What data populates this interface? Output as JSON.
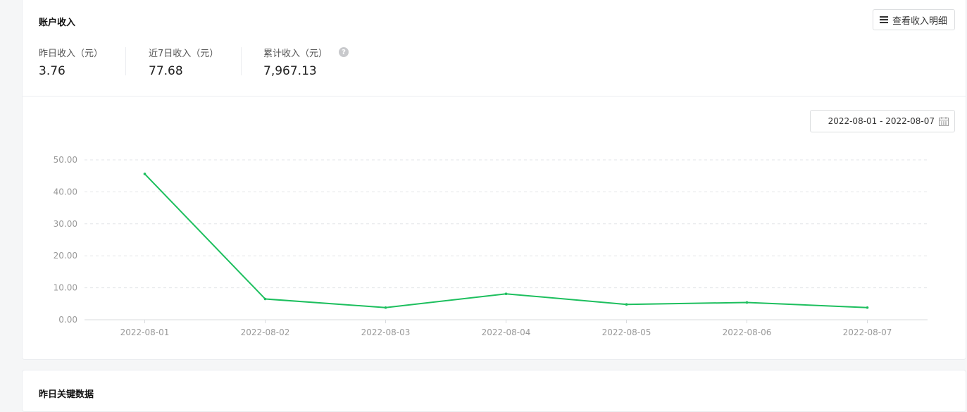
{
  "income": {
    "title": "账户收入",
    "detail_button_label": "查看收入明细",
    "stats": [
      {
        "label": "昨日收入（元）",
        "value": "3.76"
      },
      {
        "label": "近7日收入（元）",
        "value": "77.68"
      },
      {
        "label": "累计收入（元）",
        "value": "7,967.13"
      }
    ],
    "help_icon": "question-circle-icon",
    "date_range": "2022-08-01 - 2022-08-07"
  },
  "key_data": {
    "title": "昨日关键数据"
  },
  "chart_data": {
    "type": "line",
    "categories": [
      "2022-08-01",
      "2022-08-02",
      "2022-08-03",
      "2022-08-04",
      "2022-08-05",
      "2022-08-06",
      "2022-08-07"
    ],
    "series": [
      {
        "values": [
          45.6,
          6.5,
          3.8,
          8.1,
          4.8,
          5.4,
          3.8
        ],
        "color": "#1dbf5e"
      }
    ],
    "yticks": [
      "0.00",
      "10.00",
      "20.00",
      "30.00",
      "40.00",
      "50.00"
    ],
    "ylim": [
      0,
      50
    ],
    "grid": true
  }
}
